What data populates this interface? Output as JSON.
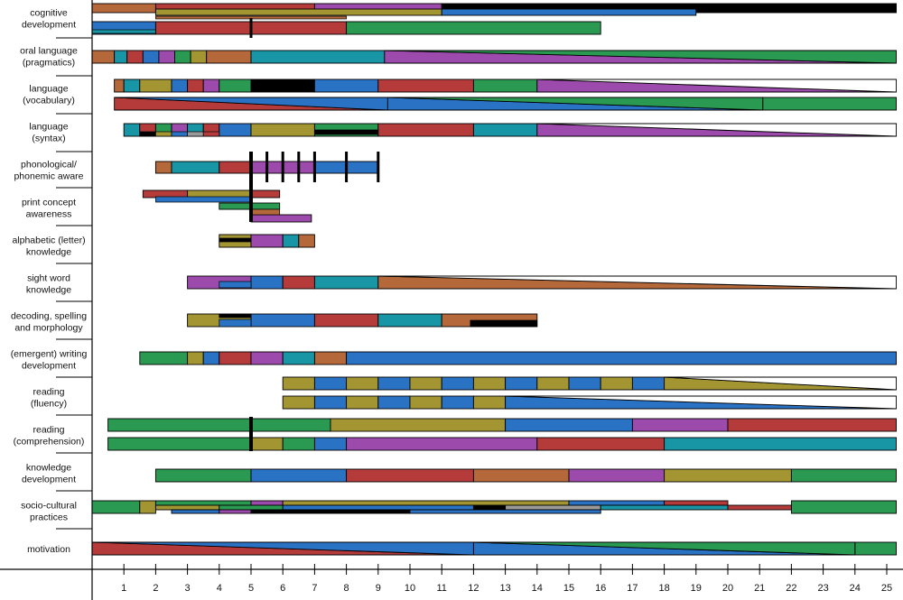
{
  "colors": {
    "brown": "#b5683a",
    "teal": "#1896a6",
    "red": "#b53b3b",
    "blue": "#2a72c4",
    "purple": "#9c4aab",
    "green": "#2a9a52",
    "olive": "#a49533",
    "black": "#000000",
    "gray": "#9a9a9a"
  },
  "chart_data": {
    "type": "bar",
    "x_ticks": [
      "1",
      "2",
      "3",
      "4",
      "5",
      "6",
      "7",
      "8",
      "9",
      "10",
      "11",
      "12",
      "13",
      "14",
      "15",
      "16",
      "17",
      "18",
      "19",
      "20",
      "21",
      "22",
      "23",
      "24",
      "25"
    ],
    "xlim": [
      0,
      25.3
    ],
    "grid": false,
    "rows": [
      {
        "label": [
          "cognitive",
          "development"
        ]
      },
      {
        "label": [
          "oral language",
          "(pragmatics)"
        ]
      },
      {
        "label": [
          "language",
          "(vocabulary)"
        ]
      },
      {
        "label": [
          "language",
          "(syntax)"
        ]
      },
      {
        "label": [
          "phonological/",
          "phonemic aware"
        ]
      },
      {
        "label": [
          "print concept",
          "awareness"
        ]
      },
      {
        "label": [
          "alphabetic (letter)",
          "knowledge"
        ]
      },
      {
        "label": [
          "sight word",
          "knowledge"
        ]
      },
      {
        "label": [
          "decoding, spelling",
          "and morphology"
        ]
      },
      {
        "label": [
          "(emergent) writing",
          "development"
        ]
      },
      {
        "label": [
          "reading",
          "(fluency)"
        ]
      },
      {
        "label": [
          "reading",
          "(comprehension)"
        ]
      },
      {
        "label": [
          "knowledge",
          "development"
        ]
      },
      {
        "label": [
          "socio-cultural",
          "practices"
        ]
      },
      {
        "label": [
          "motivation"
        ]
      }
    ],
    "tracks": [
      {
        "y": 4,
        "h": 10,
        "segs": [
          [
            0,
            2,
            "brown"
          ],
          [
            2,
            7,
            "red"
          ],
          [
            7,
            11,
            "purple"
          ],
          [
            11,
            25.3,
            "black"
          ]
        ]
      },
      {
        "y": 10,
        "h": 7,
        "segs": [
          [
            2,
            11,
            "olive"
          ],
          [
            11,
            19,
            "blue"
          ]
        ]
      },
      {
        "y": 24,
        "h": 14,
        "segs": [
          [
            0,
            2,
            "blue"
          ],
          [
            2,
            8,
            "red"
          ],
          [
            8,
            16,
            "green"
          ]
        ]
      },
      {
        "y": 56,
        "h": 14,
        "segs": [
          [
            0,
            0.7,
            "brown"
          ],
          [
            0.7,
            1.1,
            "teal"
          ],
          [
            1.1,
            1.6,
            "red"
          ],
          [
            1.6,
            2.1,
            "blue"
          ],
          [
            2.1,
            2.6,
            "purple"
          ],
          [
            2.6,
            3.1,
            "green"
          ],
          [
            3.1,
            3.6,
            "olive"
          ],
          [
            3.6,
            5,
            "brown"
          ],
          [
            5,
            9.2,
            "teal"
          ]
        ],
        "tri": [
          [
            9.2,
            25.3,
            "purple",
            "green"
          ]
        ]
      },
      {
        "y": 88,
        "h": 14,
        "segs": [
          [
            0.7,
            1,
            "brown"
          ],
          [
            1,
            1.5,
            "teal"
          ],
          [
            1.5,
            2.5,
            "olive"
          ],
          [
            2.5,
            3,
            "blue"
          ],
          [
            3,
            3.5,
            "red"
          ],
          [
            3.5,
            4,
            "purple"
          ],
          [
            4,
            5,
            "green"
          ],
          [
            5,
            7,
            "black"
          ],
          [
            7,
            9,
            "blue"
          ],
          [
            9,
            12,
            "red"
          ],
          [
            12,
            14,
            "green"
          ]
        ],
        "tri": [
          [
            14,
            25.3,
            "purple",
            "white"
          ]
        ]
      },
      {
        "y": 108,
        "h": 14,
        "segs": [
          [
            21.1,
            25.3,
            "green"
          ]
        ],
        "tri": [
          [
            0.7,
            9.3,
            "red",
            "blue"
          ],
          [
            9.3,
            21.1,
            "blue",
            "green"
          ]
        ]
      },
      {
        "y": 137,
        "h": 14,
        "segs": [
          [
            1,
            1.5,
            "teal"
          ],
          [
            1.5,
            2,
            "red"
          ],
          [
            2,
            2.5,
            "green"
          ],
          [
            2.5,
            3,
            "purple"
          ],
          [
            3,
            3.5,
            "teal"
          ],
          [
            3.5,
            4,
            "red"
          ],
          [
            4,
            5,
            "blue"
          ],
          [
            5,
            7,
            "olive"
          ],
          [
            7,
            9,
            "green"
          ],
          [
            9,
            12,
            "red"
          ],
          [
            12,
            14,
            "teal"
          ]
        ],
        "tri": [
          [
            14,
            25.3,
            "purple",
            "white"
          ]
        ]
      },
      {
        "y": 179,
        "h": 13,
        "segs": [
          [
            2,
            2.5,
            "brown"
          ],
          [
            2.5,
            4,
            "teal"
          ],
          [
            4,
            5,
            "red"
          ],
          [
            5,
            7,
            "purple"
          ],
          [
            7,
            9,
            "blue"
          ]
        ]
      },
      {
        "y": 211,
        "h": 8,
        "segs": [
          [
            1.6,
            3,
            "red"
          ],
          [
            3,
            5,
            "olive"
          ],
          [
            5,
            5.9,
            "red"
          ]
        ]
      },
      {
        "y": 225,
        "h": 7,
        "segs": [
          [
            4,
            5,
            "green"
          ],
          [
            5,
            5.9,
            "green"
          ]
        ]
      },
      {
        "y": 238,
        "h": 8,
        "segs": [
          [
            5,
            6.9,
            "purple"
          ]
        ]
      },
      {
        "y": 260,
        "h": 14,
        "segs": [
          [
            4,
            5,
            "olive"
          ],
          [
            5,
            6,
            "purple"
          ],
          [
            6,
            6.5,
            "teal"
          ],
          [
            6.5,
            7,
            "brown"
          ]
        ]
      },
      {
        "y": 306,
        "h": 14,
        "segs": [
          [
            3,
            5,
            "purple"
          ],
          [
            5,
            6,
            "blue"
          ],
          [
            6,
            7,
            "red"
          ],
          [
            7,
            9,
            "teal"
          ]
        ],
        "tri": [
          [
            9,
            25.3,
            "brown",
            "white"
          ]
        ]
      },
      {
        "y": 348,
        "h": 14,
        "segs": [
          [
            3,
            5,
            "olive"
          ],
          [
            5,
            7,
            "blue"
          ],
          [
            7,
            9,
            "red"
          ],
          [
            9,
            11,
            "teal"
          ],
          [
            11,
            14,
            "brown"
          ]
        ]
      },
      {
        "y": 390,
        "h": 14,
        "segs": [
          [
            1.5,
            3,
            "green"
          ],
          [
            3,
            3.5,
            "olive"
          ],
          [
            3.5,
            4,
            "blue"
          ],
          [
            4,
            5,
            "red"
          ],
          [
            5,
            6,
            "purple"
          ],
          [
            6,
            7,
            "teal"
          ],
          [
            7,
            8,
            "brown"
          ],
          [
            8,
            25.3,
            "blue"
          ]
        ]
      },
      {
        "y": 418,
        "h": 14,
        "segs": [
          [
            6,
            7,
            "olive"
          ],
          [
            7,
            8,
            "blue"
          ],
          [
            8,
            9,
            "olive"
          ],
          [
            9,
            10,
            "blue"
          ],
          [
            10,
            11,
            "olive"
          ],
          [
            11,
            12,
            "blue"
          ],
          [
            12,
            13,
            "olive"
          ],
          [
            13,
            14,
            "blue"
          ],
          [
            14,
            15,
            "olive"
          ],
          [
            15,
            16,
            "blue"
          ],
          [
            16,
            17,
            "olive"
          ],
          [
            17,
            18,
            "blue"
          ]
        ],
        "tri": [
          [
            18,
            25.3,
            "olive",
            "white"
          ]
        ]
      },
      {
        "y": 439,
        "h": 14,
        "segs": [
          [
            6,
            7,
            "olive"
          ],
          [
            7,
            8,
            "blue"
          ],
          [
            8,
            9,
            "olive"
          ],
          [
            9,
            10,
            "blue"
          ],
          [
            10,
            11,
            "olive"
          ],
          [
            11,
            12,
            "blue"
          ],
          [
            12,
            13,
            "olive"
          ]
        ],
        "tri": [
          [
            13,
            25.3,
            "blue",
            "white"
          ]
        ]
      },
      {
        "y": 464,
        "h": 14,
        "segs": [
          [
            0.5,
            7.5,
            "green"
          ],
          [
            7.5,
            13,
            "olive"
          ],
          [
            13,
            17,
            "blue"
          ],
          [
            17,
            20,
            "purple"
          ],
          [
            20,
            25.3,
            "red"
          ]
        ]
      },
      {
        "y": 485,
        "h": 14,
        "segs": [
          [
            0.5,
            5,
            "green"
          ],
          [
            5,
            6,
            "olive"
          ],
          [
            6,
            7,
            "green"
          ],
          [
            7,
            8,
            "blue"
          ],
          [
            8,
            14,
            "purple"
          ],
          [
            14,
            18,
            "red"
          ],
          [
            18,
            25.3,
            "teal"
          ]
        ]
      },
      {
        "y": 520,
        "h": 14,
        "segs": [
          [
            2,
            5,
            "green"
          ],
          [
            5,
            8,
            "blue"
          ],
          [
            8,
            12,
            "red"
          ],
          [
            12,
            15,
            "brown"
          ],
          [
            15,
            18,
            "purple"
          ],
          [
            18,
            22,
            "olive"
          ],
          [
            22,
            25.3,
            "green"
          ]
        ]
      },
      {
        "y": 555,
        "h": 14,
        "segs": [
          [
            0,
            1.5,
            "green"
          ],
          [
            1.5,
            2,
            "olive"
          ],
          [
            22,
            25.3,
            "green"
          ]
        ]
      },
      {
        "y": 555,
        "h": 5,
        "segs": [
          [
            2,
            5,
            "green"
          ],
          [
            5,
            6,
            "purple"
          ],
          [
            6,
            15,
            "olive"
          ],
          [
            15,
            18,
            "blue"
          ],
          [
            18,
            20,
            "red"
          ]
        ]
      },
      {
        "y": 560,
        "h": 5,
        "segs": [
          [
            2,
            4,
            "olive"
          ],
          [
            4,
            6,
            "green"
          ],
          [
            6,
            12,
            "blue"
          ],
          [
            12,
            13,
            "black"
          ],
          [
            13,
            16,
            "gray"
          ],
          [
            16,
            20,
            "teal"
          ],
          [
            20,
            22,
            "red"
          ]
        ]
      },
      {
        "y": 565,
        "h": 4,
        "segs": [
          [
            2.5,
            4,
            "blue"
          ],
          [
            4,
            5,
            "purple"
          ],
          [
            5,
            10,
            "black"
          ],
          [
            10,
            16,
            "blue"
          ]
        ]
      },
      {
        "y": 601,
        "h": 14,
        "segs": [
          [
            24,
            25.3,
            "green"
          ]
        ],
        "tri": [
          [
            0,
            12,
            "red",
            "blue"
          ],
          [
            12,
            24,
            "blue",
            "green"
          ]
        ]
      }
    ],
    "markers": [
      {
        "x": 5,
        "y1": 20,
        "y2": 42,
        "w": 3
      },
      {
        "x": 5,
        "y1": 168,
        "y2": 246,
        "w": 4
      },
      {
        "x": 5.5,
        "y1": 168,
        "y2": 202,
        "w": 3
      },
      {
        "x": 6,
        "y1": 168,
        "y2": 202,
        "w": 3
      },
      {
        "x": 6.5,
        "y1": 168,
        "y2": 202,
        "w": 3
      },
      {
        "x": 7,
        "y1": 168,
        "y2": 202,
        "w": 3
      },
      {
        "x": 8,
        "y1": 168,
        "y2": 202,
        "w": 3
      },
      {
        "x": 9,
        "y1": 168,
        "y2": 202,
        "w": 3
      },
      {
        "x": 5,
        "y1": 462,
        "y2": 500,
        "w": 4
      }
    ],
    "thin_bars": [
      {
        "x0": 2,
        "x1": 8,
        "y": 18,
        "h": 3,
        "color": "brown"
      },
      {
        "x0": 0,
        "x1": 2,
        "y": 33,
        "h": 4,
        "color": "teal"
      },
      {
        "x0": 1.5,
        "x1": 2,
        "y": 146,
        "h": 5,
        "color": "black"
      },
      {
        "x0": 2,
        "x1": 2.5,
        "y": 146,
        "h": 5,
        "color": "olive"
      },
      {
        "x0": 2.5,
        "x1": 3,
        "y": 146,
        "h": 5,
        "color": "blue"
      },
      {
        "x0": 3,
        "x1": 3.5,
        "y": 146,
        "h": 5,
        "color": "gray"
      },
      {
        "x0": 3.5,
        "x1": 4,
        "y": 146,
        "h": 5,
        "color": "red"
      },
      {
        "x0": 7,
        "x1": 9,
        "y": 144,
        "h": 5,
        "color": "black"
      },
      {
        "x0": 2,
        "x1": 5,
        "y": 218,
        "h": 6,
        "color": "blue"
      },
      {
        "x0": 5,
        "x1": 5.9,
        "y": 232,
        "h": 6,
        "color": "brown"
      },
      {
        "x0": 4,
        "x1": 5,
        "y": 264,
        "h": 4,
        "color": "black"
      },
      {
        "x0": 4,
        "x1": 5,
        "y": 312,
        "h": 7,
        "color": "blue"
      },
      {
        "x0": 4,
        "x1": 5,
        "y": 348,
        "h": 4,
        "color": "black"
      },
      {
        "x0": 4,
        "x1": 5,
        "y": 354,
        "h": 8,
        "color": "blue"
      },
      {
        "x0": 11.9,
        "x1": 14,
        "y": 355,
        "h": 7,
        "color": "black"
      }
    ],
    "separators": [
      42,
      84,
      126,
      168,
      208,
      250,
      292,
      334,
      376,
      418,
      460,
      502,
      544,
      586
    ]
  }
}
